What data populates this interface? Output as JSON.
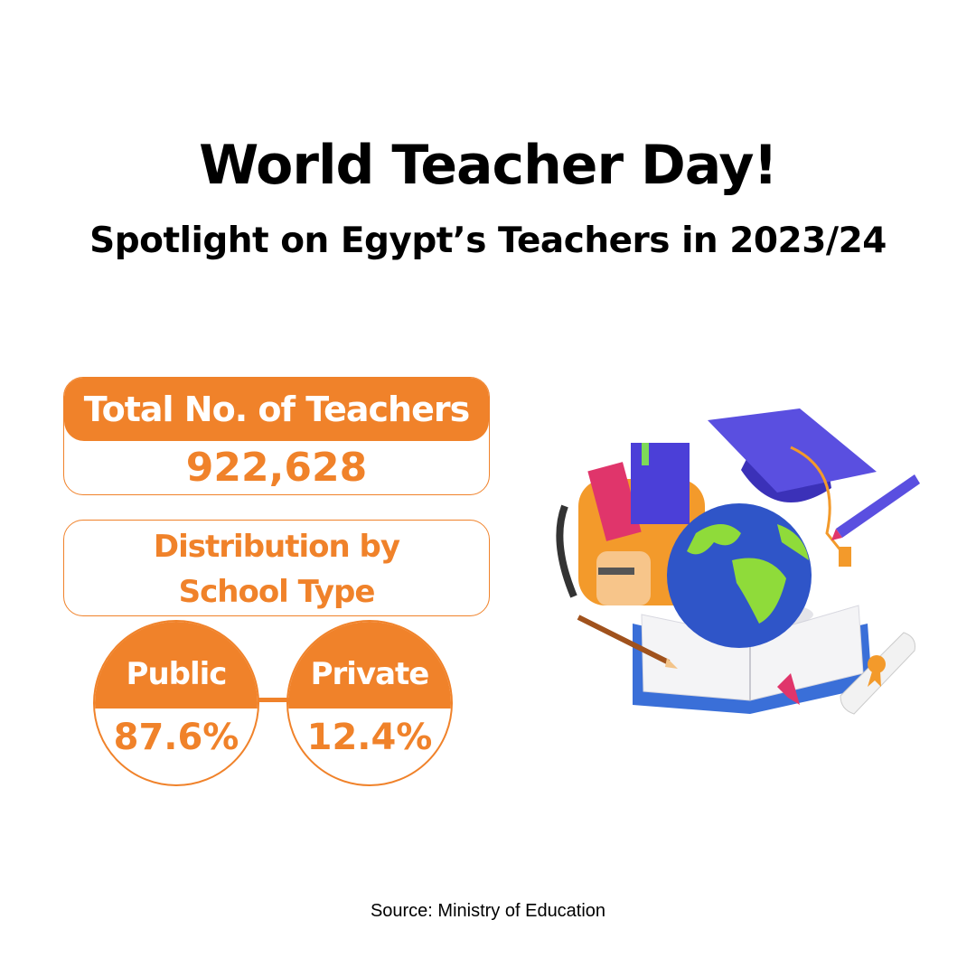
{
  "header": {
    "title": "World Teacher Day!",
    "subtitle": "Spotlight on Egypt’s Teachers in 2023/24"
  },
  "total": {
    "label": "Total No. of Teachers",
    "value": "922,628"
  },
  "distribution": {
    "heading_line1": "Distribution by",
    "heading_line2": "School Type",
    "items": [
      {
        "label": "Public",
        "value": "87.6%"
      },
      {
        "label": "Private",
        "value": "12.4%"
      }
    ]
  },
  "source": "Source: Ministry of Education",
  "colors": {
    "accent": "#f0822a",
    "text": "#000000"
  },
  "illustration": [
    "backpack",
    "books",
    "graduation-cap",
    "globe",
    "open-book",
    "pencil",
    "pen",
    "diploma-scroll"
  ]
}
